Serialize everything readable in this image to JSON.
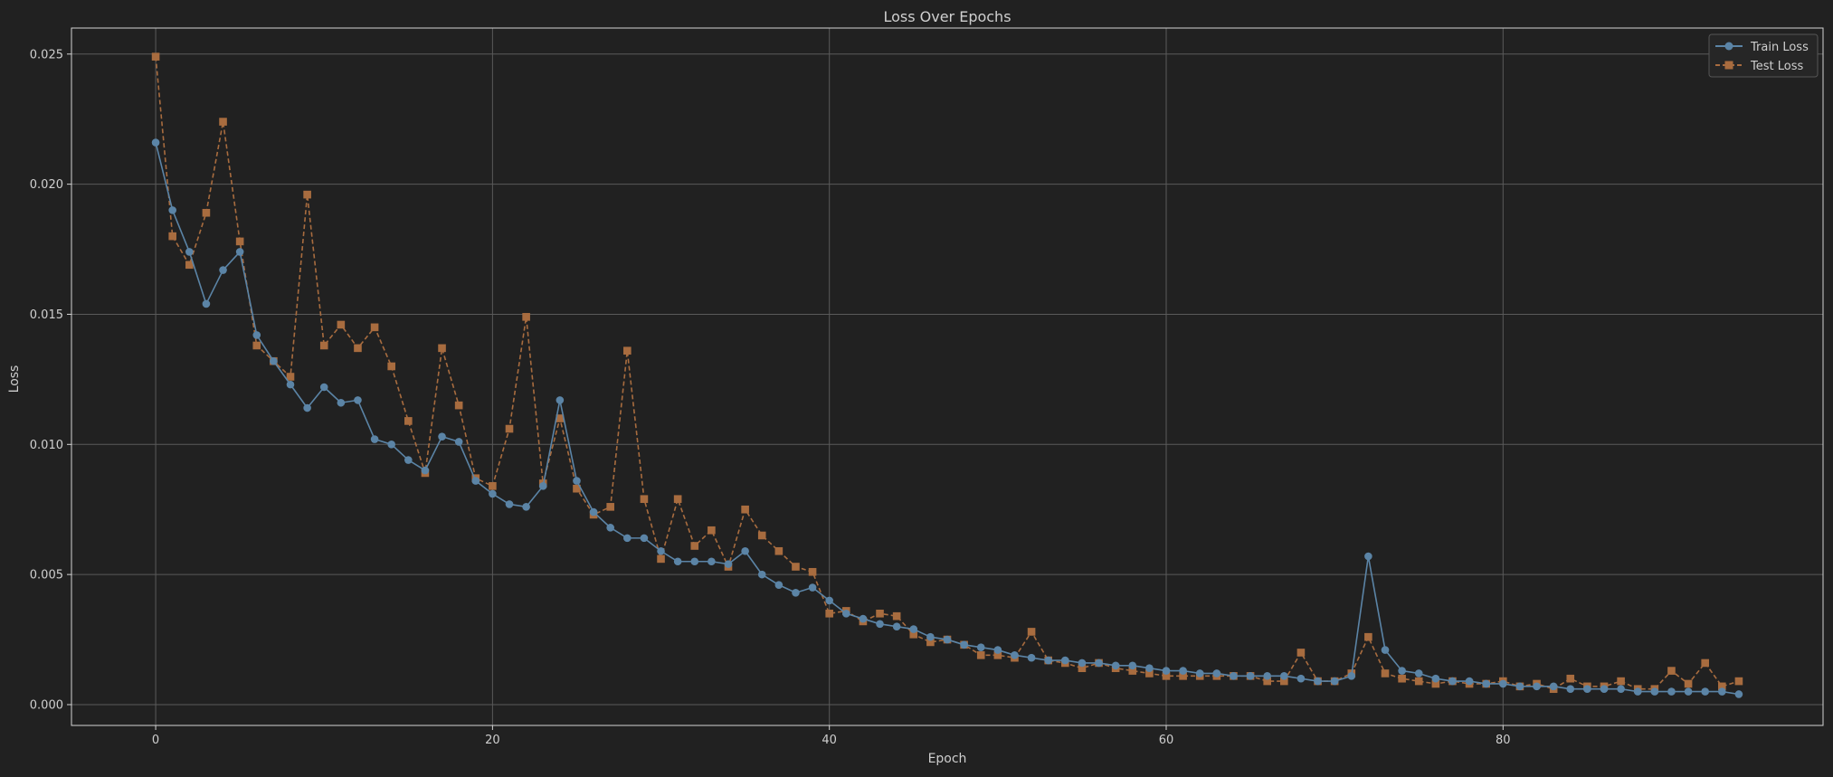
{
  "colors": {
    "background": "#212121",
    "plot_background": "#212121",
    "axes": "#d4d4d4",
    "grid": "#5a5a5a",
    "text": "#cfcfcf",
    "train": "#5b84a6",
    "test": "#a86c3f"
  },
  "chart_data": {
    "type": "line",
    "title": "Loss Over Epochs",
    "xlabel": "Epoch",
    "ylabel": "Loss",
    "xlim": [
      -5,
      99
    ],
    "ylim": [
      -0.0008,
      0.026
    ],
    "x_ticks": [
      0,
      20,
      40,
      60,
      80
    ],
    "y_ticks": [
      0.0,
      0.005,
      0.01,
      0.015,
      0.02,
      0.025
    ],
    "y_tick_labels": [
      "0.000",
      "0.005",
      "0.010",
      "0.015",
      "0.020",
      "0.025"
    ],
    "grid": true,
    "legend_position": "top-right",
    "series": [
      {
        "name": "Train Loss",
        "marker": "circle",
        "line_style": "solid",
        "color": "#5b84a6",
        "x_start": 0,
        "values": [
          0.0216,
          0.019,
          0.0174,
          0.0154,
          0.0167,
          0.0174,
          0.0142,
          0.0132,
          0.0123,
          0.0114,
          0.0122,
          0.0116,
          0.0117,
          0.0102,
          0.01,
          0.0094,
          0.009,
          0.0103,
          0.0101,
          0.0086,
          0.0081,
          0.0077,
          0.0076,
          0.0084,
          0.0117,
          0.0086,
          0.0074,
          0.0068,
          0.0064,
          0.0064,
          0.0059,
          0.0055,
          0.0055,
          0.0055,
          0.0054,
          0.0059,
          0.005,
          0.0046,
          0.0043,
          0.0045,
          0.004,
          0.0035,
          0.0033,
          0.0031,
          0.003,
          0.0029,
          0.0026,
          0.0025,
          0.0023,
          0.0022,
          0.0021,
          0.0019,
          0.0018,
          0.0017,
          0.0017,
          0.0016,
          0.0016,
          0.0015,
          0.0015,
          0.0014,
          0.0013,
          0.0013,
          0.0012,
          0.0012,
          0.0011,
          0.0011,
          0.0011,
          0.0011,
          0.001,
          0.0009,
          0.0009,
          0.0011,
          0.0057,
          0.0021,
          0.0013,
          0.0012,
          0.001,
          0.0009,
          0.0009,
          0.0008,
          0.0008,
          0.0007,
          0.0007,
          0.0007,
          0.0006,
          0.0006,
          0.0006,
          0.0006,
          0.0005,
          0.0005,
          0.0005,
          0.0005,
          0.0005,
          0.0005,
          0.0004
        ]
      },
      {
        "name": "Test Loss",
        "marker": "square",
        "line_style": "dashed",
        "color": "#a86c3f",
        "x_start": 0,
        "values": [
          0.0249,
          0.018,
          0.0169,
          0.0189,
          0.0224,
          0.0178,
          0.0138,
          0.0132,
          0.0126,
          0.0196,
          0.0138,
          0.0146,
          0.0137,
          0.0145,
          0.013,
          0.0109,
          0.0089,
          0.0137,
          0.0115,
          0.0087,
          0.0084,
          0.0106,
          0.0149,
          0.0085,
          0.011,
          0.0083,
          0.0073,
          0.0076,
          0.0136,
          0.0079,
          0.0056,
          0.0079,
          0.0061,
          0.0067,
          0.0053,
          0.0075,
          0.0065,
          0.0059,
          0.0053,
          0.0051,
          0.0035,
          0.0036,
          0.0032,
          0.0035,
          0.0034,
          0.0027,
          0.0024,
          0.0025,
          0.0023,
          0.0019,
          0.0019,
          0.0018,
          0.0028,
          0.0017,
          0.0016,
          0.0014,
          0.0016,
          0.0014,
          0.0013,
          0.0012,
          0.0011,
          0.0011,
          0.0011,
          0.0011,
          0.0011,
          0.0011,
          0.0009,
          0.0009,
          0.002,
          0.0009,
          0.0009,
          0.0012,
          0.0026,
          0.0012,
          0.001,
          0.0009,
          0.0008,
          0.0009,
          0.0008,
          0.0008,
          0.0009,
          0.0007,
          0.0008,
          0.0006,
          0.001,
          0.0007,
          0.0007,
          0.0009,
          0.0006,
          0.0006,
          0.0013,
          0.0008,
          0.0016,
          0.0007,
          0.0009
        ]
      }
    ]
  }
}
